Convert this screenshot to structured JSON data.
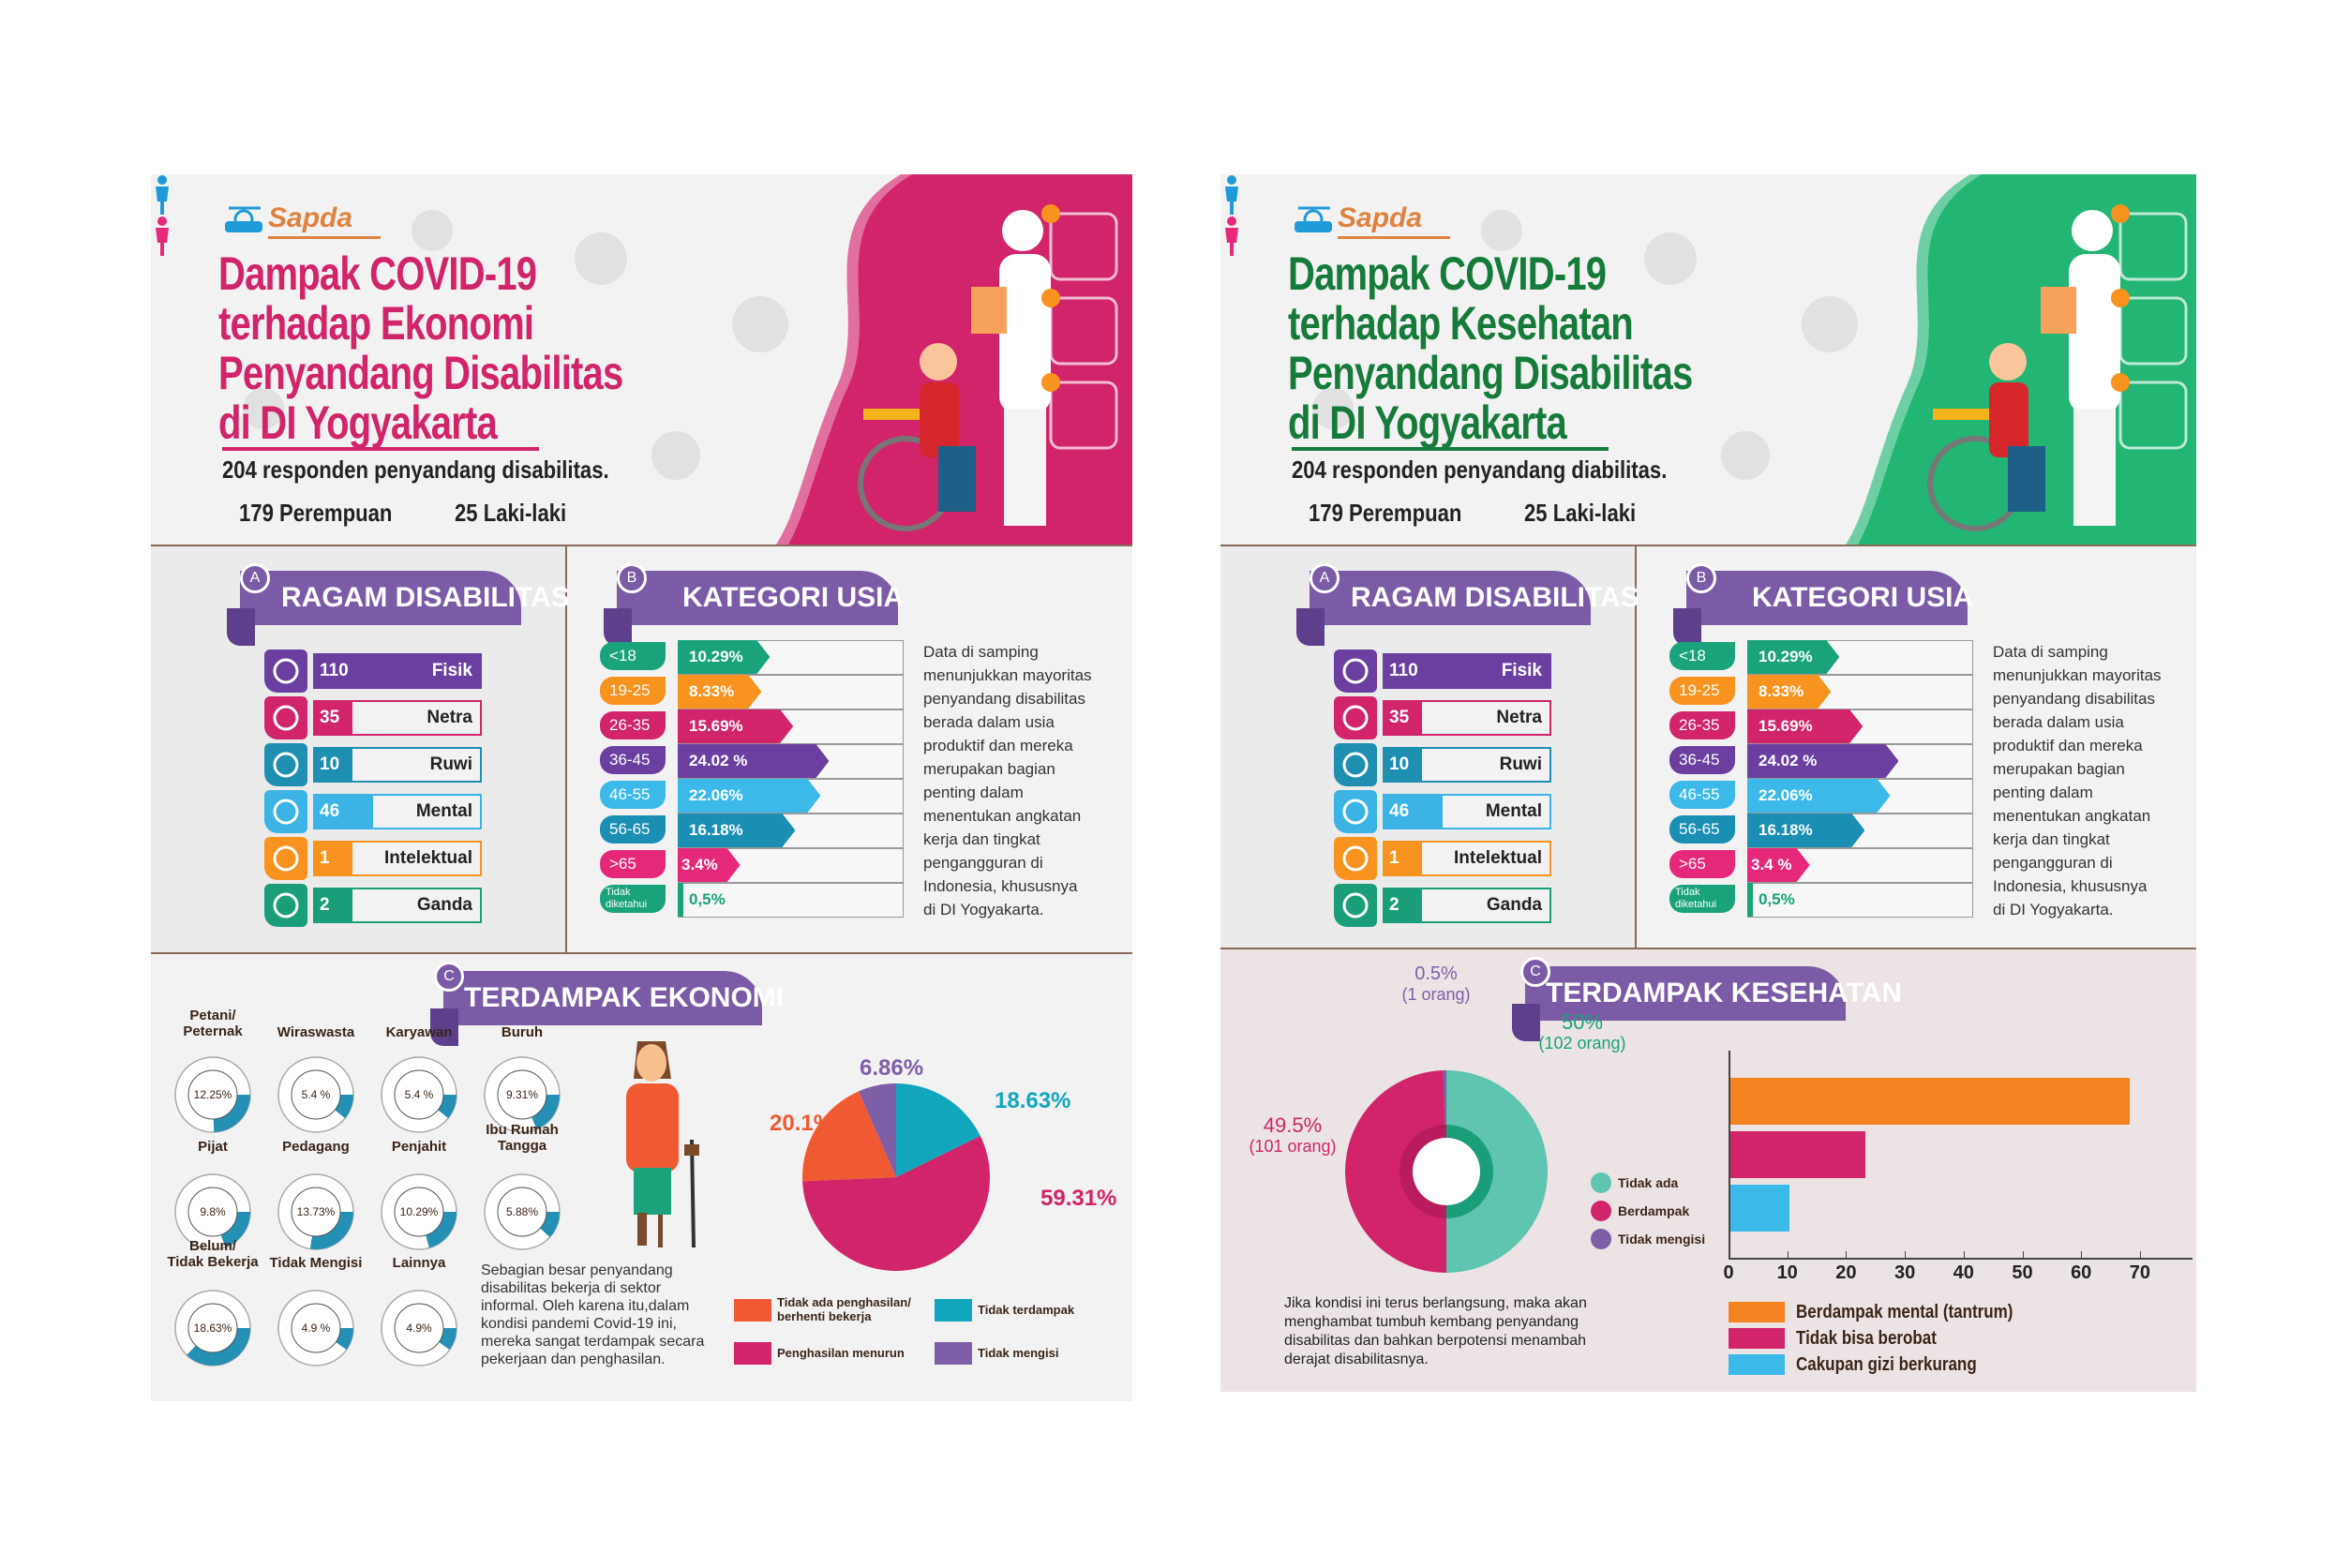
{
  "panels": [
    {
      "logo": "Sapda",
      "accent": "#d1246a",
      "title_color": "#d1246a",
      "title_lines": [
        "Dampak COVID-19",
        "terhadap Ekonomi",
        "Penyandang Disabilitas",
        "di DI Yogyakarta"
      ],
      "respondents": "204 responden penyandang disabilitas.",
      "female": "179 Perempuan",
      "male": "25 Laki-laki",
      "section_a": {
        "badge": "A",
        "title": "RAGAM DISABILITAS",
        "items": [
          {
            "count": "110",
            "label": "Fisik",
            "color": "#6b3fa0",
            "icon": "wheelchair-icon"
          },
          {
            "count": "35",
            "label": "Netra",
            "color": "#d1246a",
            "icon": "eye-crossed-icon"
          },
          {
            "count": "10",
            "label": "Ruwi",
            "color": "#1e8fb0",
            "icon": "sign-language-icon"
          },
          {
            "count": "46",
            "label": "Mental",
            "color": "#3bb4e5",
            "icon": "head-mind-icon"
          },
          {
            "count": "1",
            "label": "Intelektual",
            "color": "#f7931e",
            "icon": "brain-head-icon"
          },
          {
            "count": "2",
            "label": "Ganda",
            "color": "#1a9e7a",
            "icon": "multiple-disability-icon"
          }
        ]
      },
      "section_b": {
        "badge": "B",
        "title": "KATEGORI USIA",
        "rows": [
          {
            "label": "<18",
            "value_label": "10.29%",
            "value": 10.29,
            "color": "#1aa37a"
          },
          {
            "label": "19-25",
            "value_label": "8.33%",
            "value": 8.33,
            "color": "#f7931e"
          },
          {
            "label": "26-35",
            "value_label": "15.69%",
            "value": 15.69,
            "color": "#d1246a"
          },
          {
            "label": "36-45",
            "value_label": "24.02 %",
            "value": 24.02,
            "color": "#6b3fa0"
          },
          {
            "label": "46-55",
            "value_label": "22.06%",
            "value": 22.06,
            "color": "#3bb9e8"
          },
          {
            "label": "56-65",
            "value_label": "16.18%",
            "value": 16.18,
            "color": "#1b8fb3"
          },
          {
            "label": ">65",
            "value_label": "3.4%",
            "value": 3.4,
            "color": "#e5287a"
          },
          {
            "label": "Tidak\ndiketahui",
            "value_label": "0,5%",
            "value": 0.5,
            "color": "#1aa37a"
          }
        ],
        "description": "Data di samping\nmenunjukkan mayoritas\npenyandang disabilitas\nberada dalam usia\nproduktif dan mereka\nmerupakan bagian\npenting dalam\nmenentukan angkatan\nkerja dan tingkat\npengangguran di\nIndonesia, khususnya\ndi DI Yogyakarta."
      },
      "section_c": {
        "badge": "C",
        "title": "TERDAMPAK EKONOMI",
        "occupations": [
          {
            "label": "Petani/\nPeternak",
            "value_label": "12.25%",
            "value": 12.25
          },
          {
            "label": "Wiraswasta",
            "value_label": "5.4 %",
            "value": 5.4
          },
          {
            "label": "Karyawan",
            "value_label": "5.4 %",
            "value": 5.4
          },
          {
            "label": "Buruh",
            "value_label": "9.31%",
            "value": 9.31
          },
          {
            "label": "Pijat",
            "value_label": "9.8%",
            "value": 9.8
          },
          {
            "label": "Pedagang",
            "value_label": "13.73%",
            "value": 13.73
          },
          {
            "label": "Penjahit",
            "value_label": "10.29%",
            "value": 10.29
          },
          {
            "label": "Ibu Rumah\nTangga",
            "value_label": "5.88%",
            "value": 5.88
          },
          {
            "label": "Belum/\nTidak Bekerja",
            "value_label": "18.63%",
            "value": 18.63
          },
          {
            "label": "Tidak Mengisi",
            "value_label": "4.9 %",
            "value": 4.9
          },
          {
            "label": "Lainnya",
            "value_label": "4.9%",
            "value": 4.9
          }
        ],
        "description": "Sebagian besar penyandang\ndisabilitas bekerja di sektor\ninformal. Oleh karena itu,dalam\nkondisi pandemi Covid-19 ini,\nmereka sangat terdampak secara\npekerjaan dan penghasilan."
      }
    },
    {
      "logo": "Sapda",
      "accent": "#22b573",
      "title_color": "#157a3a",
      "title_lines": [
        "Dampak COVID-19",
        "terhadap  Kesehatan",
        "Penyandang Disabilitas",
        "di DI Yogyakarta"
      ],
      "respondents": "204 responden penyandang diabilitas.",
      "female": "179 Perempuan",
      "male": "25 Laki-laki",
      "section_a": {
        "badge": "A",
        "title": "RAGAM DISABILITAS",
        "items": [
          {
            "count": "110",
            "label": "Fisik",
            "color": "#6b3fa0",
            "icon": "wheelchair-icon"
          },
          {
            "count": "35",
            "label": "Netra",
            "color": "#d1246a",
            "icon": "eye-crossed-icon"
          },
          {
            "count": "10",
            "label": "Ruwi",
            "color": "#1e8fb0",
            "icon": "sign-language-icon"
          },
          {
            "count": "46",
            "label": "Mental",
            "color": "#3bb4e5",
            "icon": "head-mind-icon"
          },
          {
            "count": "1",
            "label": "Intelektual",
            "color": "#f7931e",
            "icon": "brain-head-icon"
          },
          {
            "count": "2",
            "label": "Ganda",
            "color": "#1a9e7a",
            "icon": "multiple-disability-icon"
          }
        ]
      },
      "section_b": {
        "badge": "B",
        "title": "KATEGORI USIA",
        "rows": [
          {
            "label": "<18",
            "value_label": "10.29%",
            "value": 10.29,
            "color": "#1aa37a"
          },
          {
            "label": "19-25",
            "value_label": "8.33%",
            "value": 8.33,
            "color": "#f7931e"
          },
          {
            "label": "26-35",
            "value_label": "15.69%",
            "value": 15.69,
            "color": "#d1246a"
          },
          {
            "label": "36-45",
            "value_label": "24.02 %",
            "value": 24.02,
            "color": "#6b3fa0"
          },
          {
            "label": "46-55",
            "value_label": "22.06%",
            "value": 22.06,
            "color": "#3bb9e8"
          },
          {
            "label": "56-65",
            "value_label": "16.18%",
            "value": 16.18,
            "color": "#1b8fb3"
          },
          {
            "label": ">65",
            "value_label": "3.4 %",
            "value": 3.4,
            "color": "#e5287a"
          },
          {
            "label": "Tidak\ndiketahui",
            "value_label": "0,5%",
            "value": 0.5,
            "color": "#1aa37a"
          }
        ],
        "description": "Data di samping\nmenunjukkan mayoritas\npenyandang disabilitas\nberada dalam usia\nproduktif dan mereka\nmerupakan bagian\npenting dalam\nmenentukan angkatan\nkerja dan tingkat\npengangguran di\nIndonesia, khususnya\ndi DI Yogyakarta."
      },
      "section_c": {
        "badge": "C",
        "title": "TERDAMPAK KESEHATAN",
        "description": "Jika kondisi ini terus berlangsung, maka akan\nmenghambat tumbuh kembang penyandang\ndisabilitas dan  bahkan berpotensi menambah\nderajat disabilitasnya."
      }
    }
  ],
  "chart_data": [
    {
      "type": "pie",
      "slices": [
        {
          "label": "Tidak terdampak",
          "value": 18.63,
          "value_label": "18.63%",
          "color": "#12a6bd"
        },
        {
          "label": "Penghasilan menurun",
          "value": 59.31,
          "value_label": "59.31%",
          "color": "#d1246a"
        },
        {
          "label": "Tidak ada penghasilan/\nberhenti bekerja",
          "value": 20.1,
          "value_label": "20.1%",
          "color": "#f05a32"
        },
        {
          "label": "Tidak mengisi",
          "value": 6.86,
          "value_label": "6.86%",
          "color": "#7f5ea8"
        }
      ]
    },
    {
      "type": "pie",
      "slices": [
        {
          "label": "Tidak ada",
          "value": 50,
          "value_label": "50%",
          "count_label": "(102 orang)",
          "color": "#5fc4b0"
        },
        {
          "label": "Berdampak",
          "value": 49.5,
          "value_label": "49.5%",
          "count_label": "(101 orang)",
          "color": "#d1246a"
        },
        {
          "label": "Tidak mengisi",
          "value": 0.5,
          "value_label": "0.5%",
          "count_label": "(1 orang)",
          "color": "#7f5ea8"
        }
      ]
    },
    {
      "type": "bar",
      "orientation": "horizontal",
      "categories": [
        "Berdampak mental (tantrum)",
        "Tidak bisa berobat",
        "Cakupan gizi berkurang"
      ],
      "values": [
        68,
        23,
        10
      ],
      "colors": [
        "#f58220",
        "#d1246a",
        "#3bb9e8"
      ],
      "xlim": [
        0,
        70
      ],
      "xticks": [
        "0",
        "10",
        "20",
        "30",
        "40",
        "50",
        "60",
        "70"
      ],
      "legend": "bottom"
    }
  ]
}
